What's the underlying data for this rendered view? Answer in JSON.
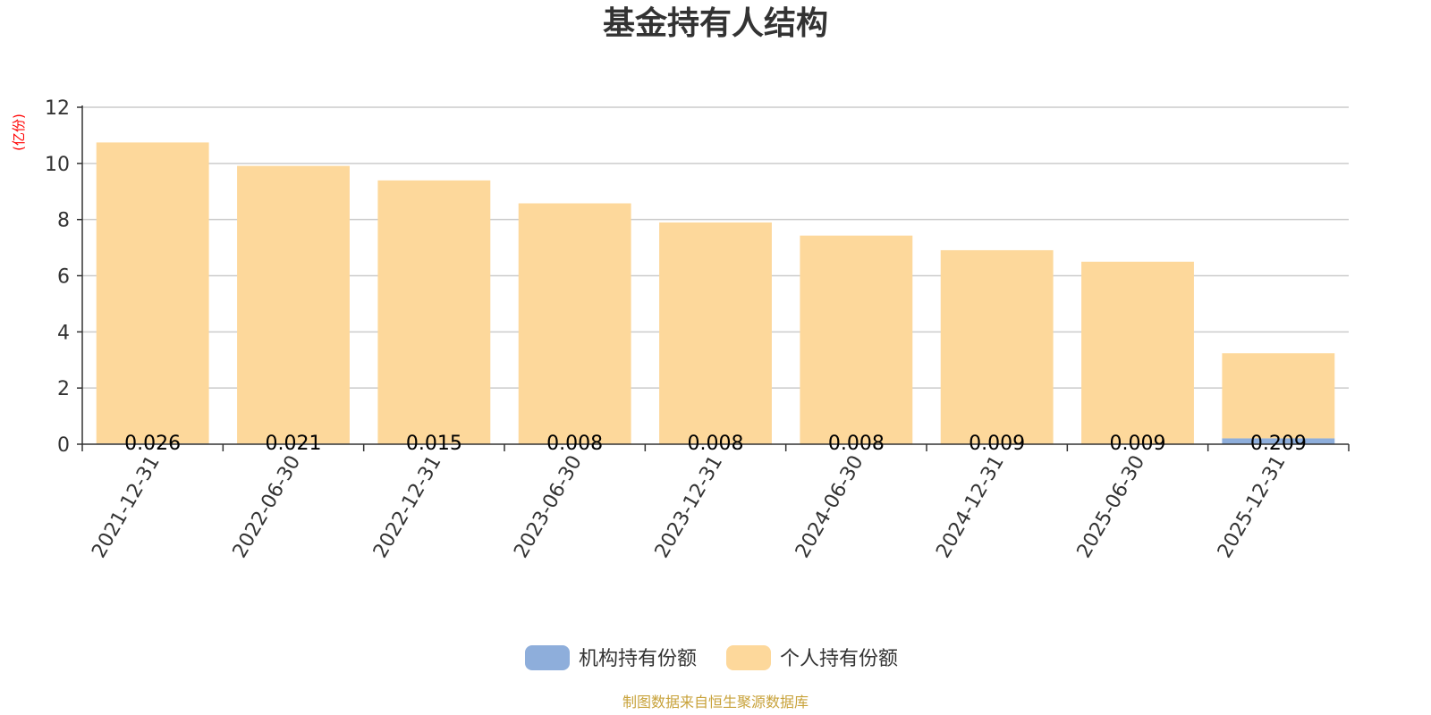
{
  "chart_data": {
    "type": "bar",
    "stacked": true,
    "title": "基金持有人结构",
    "ylabel": "(亿份)",
    "ylim": [
      0,
      12
    ],
    "yticks": [
      "0",
      "2",
      "4",
      "6",
      "8",
      "10",
      "12"
    ],
    "grid": true,
    "legend_position": "bottom",
    "categories": [
      "2021-12-31",
      "2022-06-30",
      "2022-12-31",
      "2023-06-30",
      "2023-12-31",
      "2024-06-30",
      "2024-12-31",
      "2025-06-30",
      "2025-12-31"
    ],
    "series": [
      {
        "name": "机构持有份额",
        "color": "#8eaedb",
        "values": [
          0.026,
          0.021,
          0.015,
          0.008,
          0.008,
          0.008,
          0.009,
          0.009,
          0.209
        ],
        "labels": [
          "0.026",
          "0.021",
          "0.015",
          "0.008",
          "0.008",
          "0.008",
          "0.009",
          "0.009",
          "0.209"
        ]
      },
      {
        "name": "个人持有份额",
        "color": "#fdd89b",
        "values": [
          10.72,
          9.89,
          9.38,
          8.57,
          7.89,
          7.42,
          6.9,
          6.49,
          3.03
        ]
      }
    ],
    "source": "制图数据来自恒生聚源数据库"
  },
  "colors": {
    "axis": "#333333",
    "grid": "#cccccc",
    "unit": "#ff0000",
    "source": "#c8a23a"
  }
}
